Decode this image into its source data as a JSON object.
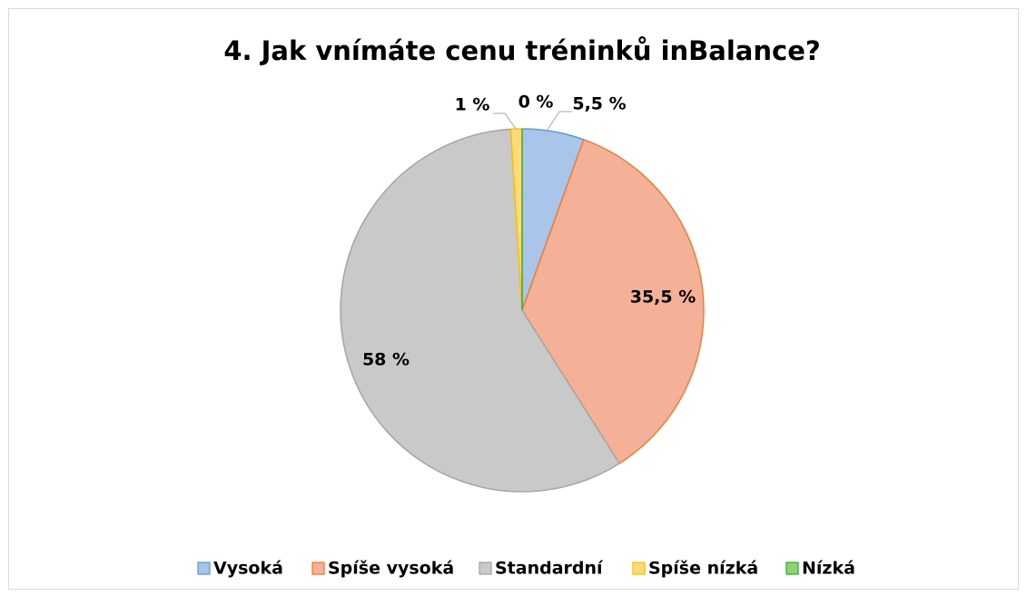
{
  "chart_data": {
    "type": "pie",
    "title": "4. Jak vnímáte cenu tréninků inBalance?",
    "categories": [
      "Vysoká",
      "Spíše vysoká",
      "Standardní",
      "Spíše nízká",
      "Nízká"
    ],
    "values": [
      5.5,
      35.5,
      58,
      1,
      0
    ],
    "value_labels": [
      "5,5 %",
      "35,5 %",
      "58 %",
      "1 %",
      "0 %"
    ],
    "colors": [
      "#a9c5ea",
      "#f5b197",
      "#c9c9c9",
      "#ffdb7a",
      "#8fd46b"
    ],
    "edge_colors": [
      "#5b9bd5",
      "#ed7d31",
      "#a5a5a5",
      "#ffc000",
      "#3aa845"
    ],
    "legend": "bottom"
  }
}
